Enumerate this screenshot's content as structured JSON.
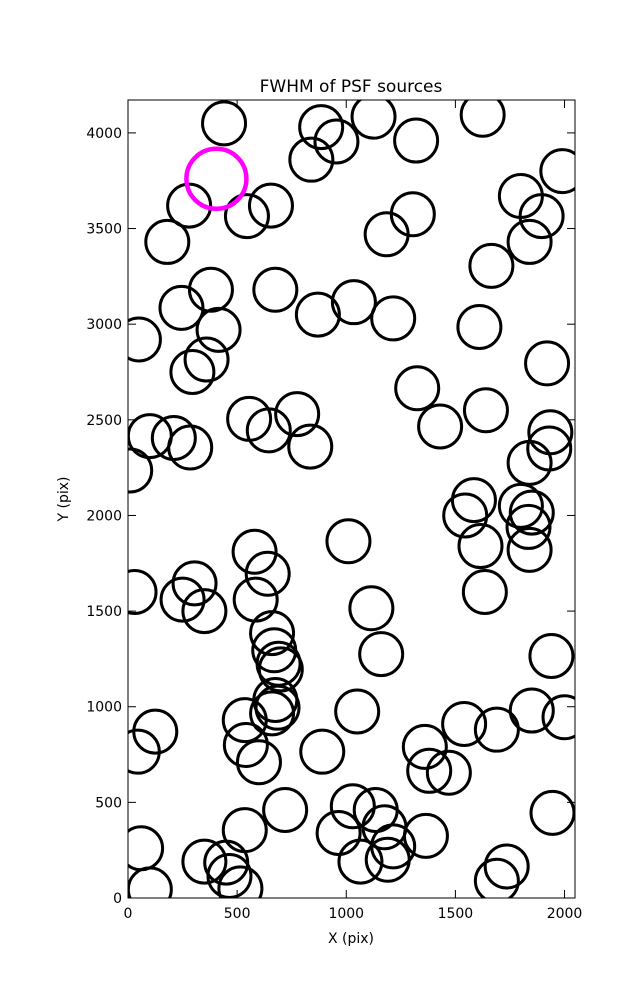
{
  "chart_data": {
    "type": "scatter",
    "title": "FWHM of PSF sources",
    "x_label": "X (pix)",
    "y_label": "Y (pix)",
    "xlim": [
      0,
      2048
    ],
    "ylim": [
      0,
      4172
    ],
    "xticks": [
      0,
      500,
      1000,
      1500,
      2000
    ],
    "yticks": [
      0,
      500,
      1000,
      1500,
      2000,
      2500,
      3000,
      3500,
      4000
    ],
    "series": [
      {
        "color": "#000000",
        "x": [
          440,
          885,
          1125,
          1625,
          840,
          955,
          1320,
          1990,
          280,
          545,
          655,
          180,
          1185,
          1305,
          1800,
          1895,
          1840,
          1665,
          380,
          245,
          675,
          415,
          1035,
          870,
          1215,
          1610,
          50,
          360,
          295,
          1920,
          1325,
          1640,
          555,
          775,
          645,
          1430,
          100,
          210,
          285,
          835,
          1935,
          1930,
          1840,
          10,
          1585,
          1545,
          1800,
          1850,
          1835,
          1615,
          1840,
          1010,
          580,
          640,
          305,
          30,
          250,
          350,
          1635,
          585,
          1115,
          660,
          670,
          1160,
          690,
          700,
          1940,
          675,
          685,
          660,
          535,
          1050,
          125,
          1540,
          1690,
          1850,
          2000,
          45,
          540,
          600,
          890,
          1360,
          1380,
          1470,
          720,
          1030,
          1135,
          1945,
          535,
          965,
          1175,
          1365,
          1215,
          60,
          350,
          450,
          1065,
          1190,
          1735,
          465,
          515,
          100,
          1690
        ],
        "y": [
          4050,
          4030,
          4085,
          4095,
          3860,
          3955,
          3960,
          3800,
          3620,
          3565,
          3620,
          3430,
          3470,
          3575,
          3670,
          3565,
          3430,
          3305,
          3180,
          3085,
          3180,
          2970,
          3115,
          3050,
          3030,
          2985,
          2920,
          2815,
          2750,
          2795,
          2665,
          2550,
          2505,
          2530,
          2445,
          2465,
          2415,
          2405,
          2355,
          2360,
          2435,
          2350,
          2275,
          2235,
          2080,
          2000,
          2050,
          2015,
          1940,
          1840,
          1820,
          1865,
          1810,
          1695,
          1645,
          1600,
          1560,
          1500,
          1600,
          1560,
          1515,
          1385,
          1295,
          1275,
          1225,
          1195,
          1265,
          1035,
          995,
          965,
          930,
          975,
          870,
          910,
          880,
          980,
          945,
          765,
          800,
          710,
          765,
          790,
          665,
          655,
          460,
          480,
          460,
          445,
          355,
          340,
          370,
          325,
          270,
          260,
          190,
          185,
          190,
          200,
          165,
          115,
          50,
          45,
          90
        ]
      },
      {
        "color": "#ff00ff",
        "x": [
          405
        ],
        "y": [
          3760
        ]
      }
    ]
  }
}
